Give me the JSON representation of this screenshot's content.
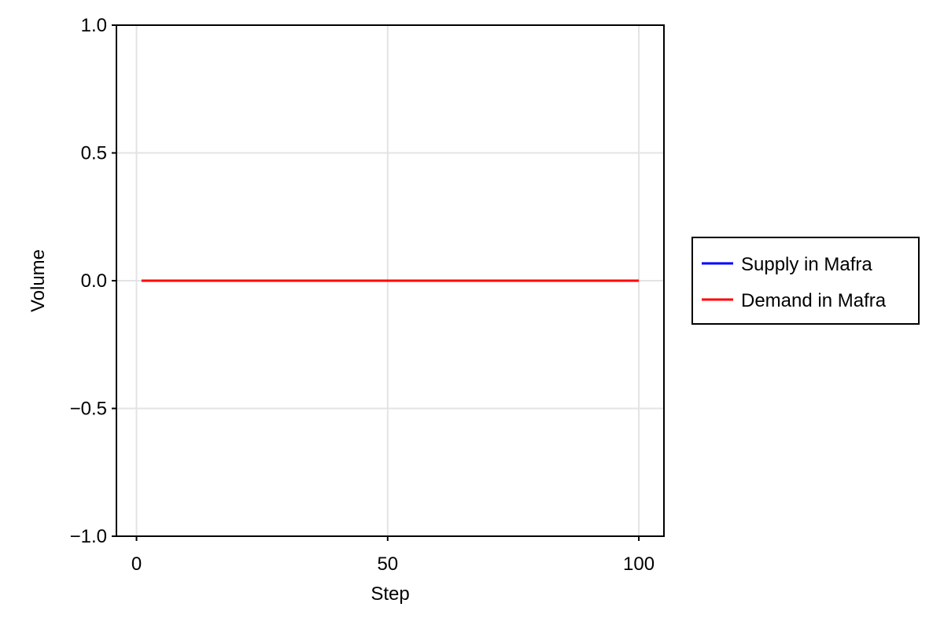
{
  "chart_data": {
    "type": "line",
    "xlabel": "Step",
    "ylabel": "Volume",
    "xlim": [
      -4,
      105
    ],
    "ylim": [
      -1.0,
      1.0
    ],
    "x_ticks": [
      0,
      50,
      100
    ],
    "x_tick_labels": [
      "0",
      "50",
      "100"
    ],
    "y_ticks": [
      -1.0,
      -0.5,
      0.0,
      0.5,
      1.0
    ],
    "y_tick_labels": [
      "−1.0",
      "−0.5",
      "0.0",
      "0.5",
      "1.0"
    ],
    "grid": true,
    "legend_position": "right",
    "series": [
      {
        "name": "Supply in Mafra",
        "color": "#0000ff",
        "x_start": 1,
        "x_end": 100,
        "constant_value": 0.0
      },
      {
        "name": "Demand in Mafra",
        "color": "#ff0000",
        "x_start": 1,
        "x_end": 100,
        "constant_value": 0.0
      }
    ]
  }
}
